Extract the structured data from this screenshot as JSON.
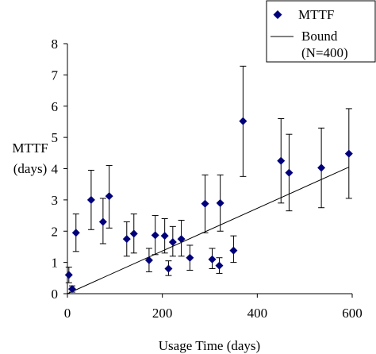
{
  "chart_data": {
    "type": "scatter",
    "title": "",
    "xlabel": "Usage Time (days)",
    "ylabel_line1": "MTTF",
    "ylabel_line2": "(days)",
    "xlim": [
      0,
      600
    ],
    "ylim": [
      0,
      8
    ],
    "xticks": [
      0,
      200,
      400,
      600
    ],
    "yticks": [
      0,
      1,
      2,
      3,
      4,
      5,
      6,
      7,
      8
    ],
    "grid": false,
    "legend": {
      "placement": "top-right",
      "entries": [
        "MTTF",
        "Bound",
        "(N=400)"
      ]
    },
    "series": [
      {
        "name": "MTTF",
        "kind": "points-with-error-bars",
        "color": "#00007a",
        "points": [
          {
            "x": 3,
            "y": 0.6,
            "lo": 0.35,
            "hi": 0.85
          },
          {
            "x": 10,
            "y": 0.15,
            "lo": 0.05,
            "hi": 0.25
          },
          {
            "x": 18,
            "y": 1.95,
            "lo": 1.35,
            "hi": 2.55
          },
          {
            "x": 50,
            "y": 3.0,
            "lo": 2.05,
            "hi": 3.95
          },
          {
            "x": 75,
            "y": 2.3,
            "lo": 1.6,
            "hi": 3.05
          },
          {
            "x": 88,
            "y": 3.12,
            "lo": 2.1,
            "hi": 4.1
          },
          {
            "x": 125,
            "y": 1.75,
            "lo": 1.2,
            "hi": 2.3
          },
          {
            "x": 140,
            "y": 1.92,
            "lo": 1.3,
            "hi": 2.55
          },
          {
            "x": 172,
            "y": 1.07,
            "lo": 0.7,
            "hi": 1.45
          },
          {
            "x": 185,
            "y": 1.87,
            "lo": 1.25,
            "hi": 2.5
          },
          {
            "x": 205,
            "y": 1.85,
            "lo": 1.3,
            "hi": 2.4
          },
          {
            "x": 213,
            "y": 0.8,
            "lo": 0.58,
            "hi": 1.05
          },
          {
            "x": 222,
            "y": 1.65,
            "lo": 1.2,
            "hi": 2.15
          },
          {
            "x": 240,
            "y": 1.75,
            "lo": 1.2,
            "hi": 2.35
          },
          {
            "x": 258,
            "y": 1.15,
            "lo": 0.75,
            "hi": 1.55
          },
          {
            "x": 290,
            "y": 2.88,
            "lo": 1.95,
            "hi": 3.8
          },
          {
            "x": 305,
            "y": 1.1,
            "lo": 0.8,
            "hi": 1.45
          },
          {
            "x": 320,
            "y": 0.9,
            "lo": 0.65,
            "hi": 1.15
          },
          {
            "x": 322,
            "y": 2.9,
            "lo": 2.0,
            "hi": 3.8
          },
          {
            "x": 350,
            "y": 1.38,
            "lo": 1.0,
            "hi": 1.85
          },
          {
            "x": 370,
            "y": 5.52,
            "lo": 3.75,
            "hi": 7.28
          },
          {
            "x": 450,
            "y": 4.25,
            "lo": 2.9,
            "hi": 5.6
          },
          {
            "x": 467,
            "y": 3.87,
            "lo": 2.65,
            "hi": 5.1
          },
          {
            "x": 535,
            "y": 4.03,
            "lo": 2.75,
            "hi": 5.3
          },
          {
            "x": 593,
            "y": 4.48,
            "lo": 3.05,
            "hi": 5.92
          }
        ]
      },
      {
        "name": "Bound",
        "kind": "line",
        "color": "#000000",
        "points": [
          {
            "x": 0,
            "y": 0
          },
          {
            "x": 593,
            "y": 4.05
          }
        ]
      }
    ]
  }
}
